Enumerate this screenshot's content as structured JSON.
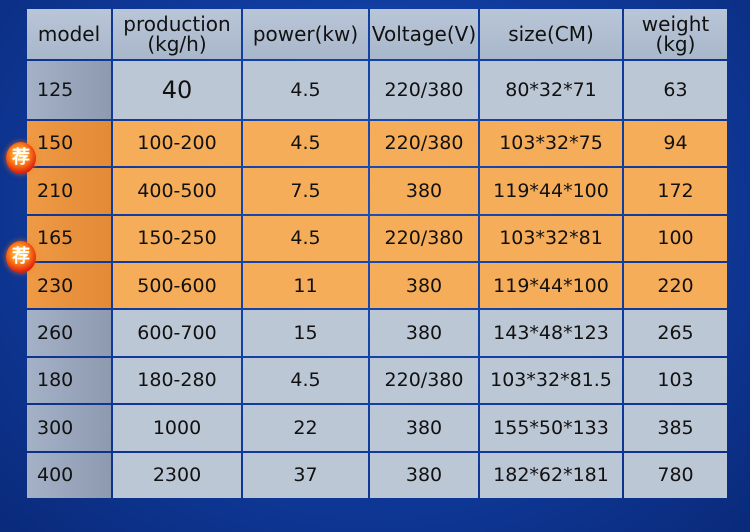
{
  "table": {
    "headers": [
      {
        "line1": "model",
        "line2": ""
      },
      {
        "line1": "production",
        "line2": "(kg/h)"
      },
      {
        "line1": "power(kw)",
        "line2": ""
      },
      {
        "line1": "Voltage(V)",
        "line2": ""
      },
      {
        "line1": "size(CM)",
        "line2": ""
      },
      {
        "line1": "weight",
        "line2": "(kg)"
      }
    ],
    "rows": [
      {
        "model": "125",
        "production": "40",
        "power": "4.5",
        "voltage": "220/380",
        "size": "80*32*71",
        "weight": "63",
        "highlighted": false
      },
      {
        "model": "150",
        "production": "100-200",
        "power": "4.5",
        "voltage": "220/380",
        "size": "103*32*75",
        "weight": "94",
        "highlighted": true
      },
      {
        "model": "210",
        "production": "400-500",
        "power": "7.5",
        "voltage": "380",
        "size": "119*44*100",
        "weight": "172",
        "highlighted": true
      },
      {
        "model": "165",
        "production": "150-250",
        "power": "4.5",
        "voltage": "220/380",
        "size": "103*32*81",
        "weight": "100",
        "highlighted": true
      },
      {
        "model": "230",
        "production": "500-600",
        "power": "11",
        "voltage": "380",
        "size": "119*44*100",
        "weight": "220",
        "highlighted": true
      },
      {
        "model": "260",
        "production": "600-700",
        "power": "15",
        "voltage": "380",
        "size": "143*48*123",
        "weight": "265",
        "highlighted": false
      },
      {
        "model": "180",
        "production": "180-280",
        "power": "4.5",
        "voltage": "220/380",
        "size": "103*32*81.5",
        "weight": "103",
        "highlighted": false
      },
      {
        "model": "300",
        "production": "1000",
        "power": "22",
        "voltage": "380",
        "size": "155*50*133",
        "weight": "385",
        "highlighted": false
      },
      {
        "model": "400",
        "production": "2300",
        "power": "37",
        "voltage": "380",
        "size": "182*62*181",
        "weight": "780",
        "highlighted": false
      }
    ]
  },
  "badges": [
    {
      "text": "荐"
    },
    {
      "text": "荐"
    }
  ],
  "colors": {
    "background": "#0f3a9c",
    "header": "#b0bdd0",
    "row": "#bcc7d6",
    "highlight": "#f6ad59",
    "badge": "#e0250b"
  }
}
